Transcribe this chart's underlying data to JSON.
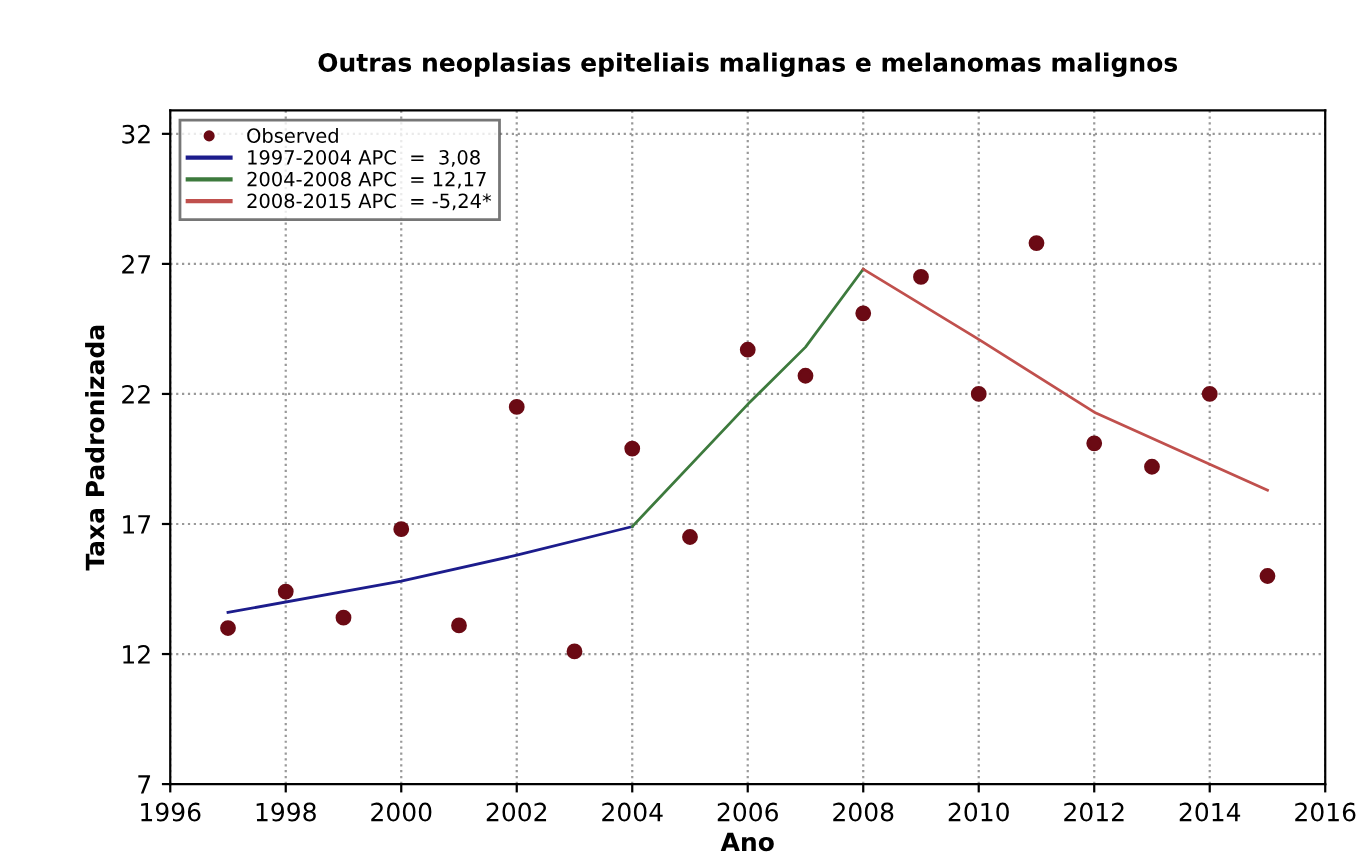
{
  "chart_data": {
    "type": "line",
    "title": "Outras neoplasias epiteliais malignas e melanomas malignos",
    "xlabel": "Ano",
    "ylabel": "Taxa Padronizada",
    "xlim": [
      1996,
      2016
    ],
    "xticks": [
      1996,
      1998,
      2000,
      2002,
      2004,
      2006,
      2008,
      2010,
      2012,
      2014,
      2016
    ],
    "ylim": [
      7,
      32.9
    ],
    "yticks": [
      7,
      12,
      17,
      22,
      27,
      32
    ],
    "grid": true,
    "legend": "top left",
    "series": [
      {
        "name": "Observed",
        "type": "scatter",
        "marker": "circle",
        "color": "#6b0a14",
        "x": [
          1997,
          1998,
          1999,
          2000,
          2001,
          2002,
          2003,
          2004,
          2005,
          2006,
          2007,
          2008,
          2009,
          2010,
          2011,
          2012,
          2013,
          2014,
          2015
        ],
        "values": [
          13.0,
          14.4,
          13.4,
          16.8,
          13.1,
          21.5,
          12.1,
          19.9,
          16.5,
          23.7,
          22.7,
          25.1,
          26.5,
          22.0,
          27.8,
          20.1,
          19.2,
          22.0,
          15.0
        ]
      },
      {
        "name": "1997-2004 APC  =  3,08",
        "color": "#1c1c8c",
        "x": [
          1997,
          2000,
          2002,
          2004
        ],
        "values": [
          13.6,
          14.8,
          15.8,
          16.9
        ]
      },
      {
        "name": "2004-2008 APC  = 12,17",
        "color": "#3d7a3d",
        "x": [
          2004,
          2006,
          2007,
          2008
        ],
        "values": [
          16.9,
          21.6,
          23.8,
          26.8
        ]
      },
      {
        "name": "2008-2015 APC  = -5,24*",
        "color": "#c0504d",
        "x": [
          2008,
          2010,
          2012,
          2014,
          2015
        ],
        "values": [
          26.8,
          24.1,
          21.3,
          19.3,
          18.3
        ]
      }
    ]
  }
}
